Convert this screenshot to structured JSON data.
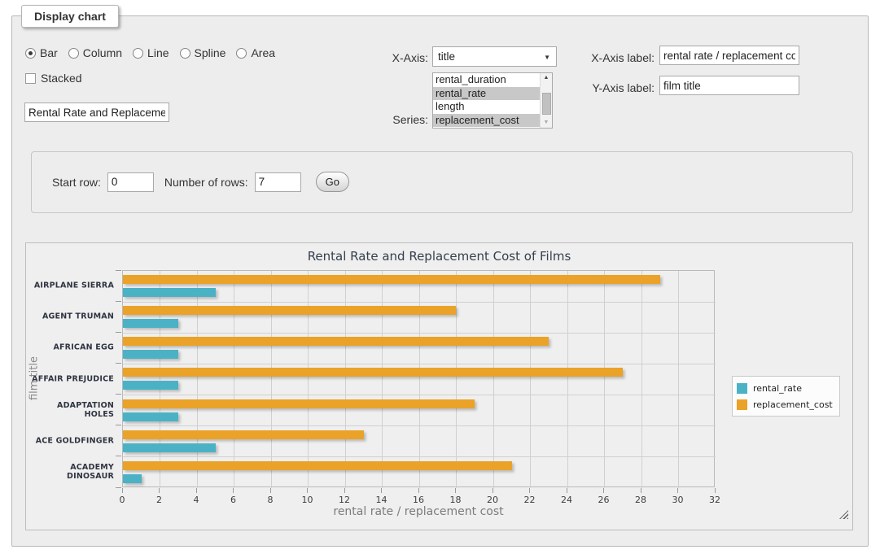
{
  "form": {
    "legend": "Display chart",
    "chart_types": [
      {
        "label": "Bar",
        "selected": true
      },
      {
        "label": "Column",
        "selected": false
      },
      {
        "label": "Line",
        "selected": false
      },
      {
        "label": "Spline",
        "selected": false
      },
      {
        "label": "Area",
        "selected": false
      }
    ],
    "stacked": {
      "label": "Stacked",
      "checked": false
    },
    "title_input": {
      "value": "Rental Rate and Replacement Cost of Films"
    },
    "x_axis": {
      "label": "X-Axis:",
      "value": "title"
    },
    "series_select": {
      "label": "Series:",
      "options": [
        {
          "label": "rental_duration",
          "selected": false
        },
        {
          "label": "rental_rate",
          "selected": true
        },
        {
          "label": "length",
          "selected": false
        },
        {
          "label": "replacement_cost",
          "selected": true
        }
      ]
    },
    "x_axis_label": {
      "label": "X-Axis label:",
      "value": "rental rate / replacement cost"
    },
    "y_axis_label": {
      "label": "Y-Axis label:",
      "value": "film title"
    }
  },
  "rows_panel": {
    "start_row_label": "Start row:",
    "start_row_value": "0",
    "num_rows_label": "Number of rows:",
    "num_rows_value": "7",
    "go_label": "Go"
  },
  "chart_data": {
    "type": "bar",
    "orientation": "horizontal",
    "title": "Rental Rate and Replacement Cost of Films",
    "xlabel": "rental rate / replacement cost",
    "ylabel": "film title",
    "categories": [
      "AIRPLANE SIERRA",
      "AGENT TRUMAN",
      "AFRICAN EGG",
      "AFFAIR PREJUDICE",
      "ADAPTATION HOLES",
      "ACE GOLDFINGER",
      "ACADEMY DINOSAUR"
    ],
    "series": [
      {
        "name": "rental_rate",
        "color": "#4bb2c5",
        "values": [
          4.99,
          2.99,
          2.99,
          2.99,
          2.99,
          4.99,
          0.99
        ]
      },
      {
        "name": "replacement_cost",
        "color": "#EAA228",
        "values": [
          28.99,
          17.99,
          22.99,
          26.99,
          18.99,
          12.99,
          20.99
        ]
      }
    ],
    "xlim": [
      0,
      32
    ],
    "xtick_step": 2,
    "grid": true,
    "legend_position": "right",
    "legend_entries": [
      "rental_rate",
      "replacement_cost"
    ]
  },
  "colors": {
    "rental_rate": "#4bb2c5",
    "replacement_cost": "#EAA228",
    "selection_gray": "#c8c8c8",
    "panel_bg": "#ededed",
    "grid": "#d0d0d0"
  }
}
